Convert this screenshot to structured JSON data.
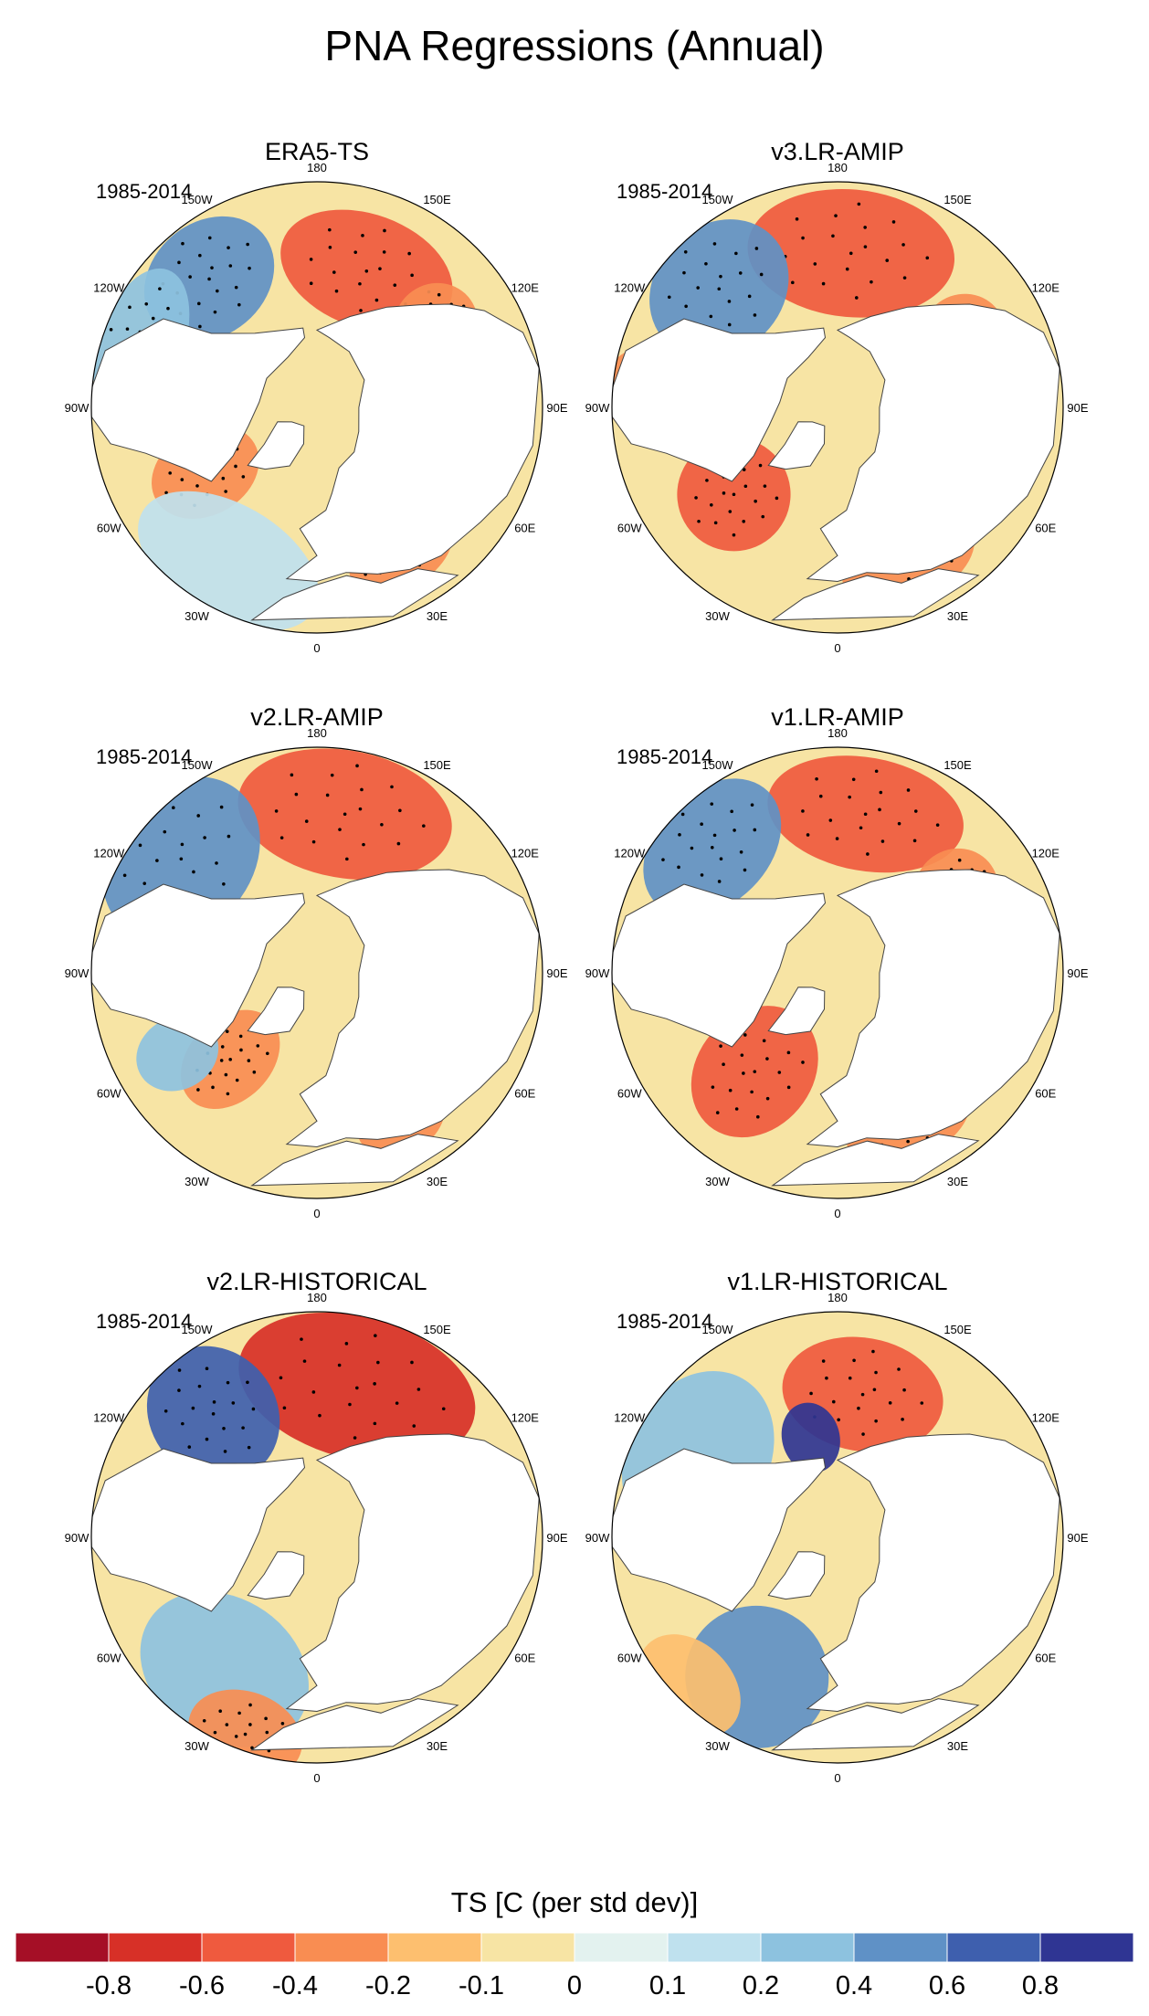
{
  "figure": {
    "title": "PNA Regressions (Annual)"
  },
  "chart_data": {
    "type": "polar-map",
    "title": "PNA Regressions (Annual)",
    "period_label": "1985-2014",
    "longitude_labels": [
      "180",
      "150E",
      "120E",
      "90E",
      "60E",
      "30E",
      "0",
      "30W",
      "60W",
      "90W",
      "120W",
      "150W"
    ],
    "longitude_values_deg": [
      180,
      150,
      120,
      90,
      60,
      30,
      0,
      -30,
      -60,
      -90,
      -120,
      -150
    ],
    "colorbar": {
      "title": "TS [C (per std dev)]",
      "tick_labels": [
        "-0.8",
        "-0.6",
        "-0.4",
        "-0.2",
        "-0.1",
        "0",
        "0.1",
        "0.2",
        "0.4",
        "0.6",
        "0.8"
      ],
      "tick_values": [
        -0.8,
        -0.6,
        -0.4,
        -0.2,
        -0.1,
        0,
        0.1,
        0.2,
        0.4,
        0.6,
        0.8
      ],
      "colors": [
        "#a50f26",
        "#d73027",
        "#ef5a3e",
        "#f98d52",
        "#fdbf6f",
        "#f7e4a4",
        "#e3f2ef",
        "#bfe1ee",
        "#8dc2df",
        "#5f91c6",
        "#3e5fae",
        "#2f3593"
      ]
    },
    "panels": [
      {
        "name": "ERA5-TS",
        "features": [
          {
            "lon": 160,
            "lat": 45,
            "value": -0.6,
            "spread_lon": 22,
            "spread_lat": 8,
            "stippled": true
          },
          {
            "lon": -140,
            "lat": 38,
            "value": 0.4,
            "spread_lon": 15,
            "spread_lat": 8,
            "stippled": true
          },
          {
            "lon": -110,
            "lat": 32,
            "value": 0.2,
            "spread_lon": 15,
            "spread_lat": 6,
            "stippled": true
          },
          {
            "lon": -60,
            "lat": 50,
            "value": -0.4,
            "spread_lon": 12,
            "spread_lat": 8,
            "stippled": true
          },
          {
            "lon": -30,
            "lat": 35,
            "value": 0.1,
            "spread_lon": 20,
            "spread_lat": 8,
            "stippled": false
          },
          {
            "lon": 30,
            "lat": 38,
            "value": -0.4,
            "spread_lon": 12,
            "spread_lat": 5,
            "stippled": true
          },
          {
            "lon": 125,
            "lat": 45,
            "value": -0.4,
            "spread_lon": 10,
            "spread_lat": 6,
            "stippled": true
          }
        ]
      },
      {
        "name": "v3.LR-AMIP",
        "features": [
          {
            "lon": 175,
            "lat": 42,
            "value": -0.6,
            "spread_lon": 24,
            "spread_lat": 9,
            "stippled": true
          },
          {
            "lon": -135,
            "lat": 38,
            "value": 0.4,
            "spread_lon": 16,
            "spread_lat": 9,
            "stippled": true
          },
          {
            "lon": -50,
            "lat": 48,
            "value": -0.6,
            "spread_lon": 15,
            "spread_lat": 8,
            "stippled": true
          },
          {
            "lon": -95,
            "lat": 30,
            "value": -0.4,
            "spread_lon": 8,
            "spread_lat": 6,
            "stippled": true
          },
          {
            "lon": 25,
            "lat": 38,
            "value": -0.4,
            "spread_lon": 15,
            "spread_lat": 6,
            "stippled": true
          },
          {
            "lon": 120,
            "lat": 45,
            "value": -0.4,
            "spread_lon": 10,
            "spread_lat": 6,
            "stippled": true
          }
        ]
      },
      {
        "name": "v2.LR-AMIP",
        "features": [
          {
            "lon": 170,
            "lat": 40,
            "value": -0.6,
            "spread_lon": 24,
            "spread_lat": 9,
            "stippled": true
          },
          {
            "lon": -130,
            "lat": 35,
            "value": 0.4,
            "spread_lon": 18,
            "spread_lat": 10,
            "stippled": true
          },
          {
            "lon": -45,
            "lat": 52,
            "value": -0.4,
            "spread_lon": 12,
            "spread_lat": 8,
            "stippled": true
          },
          {
            "lon": -60,
            "lat": 40,
            "value": 0.2,
            "spread_lon": 8,
            "spread_lat": 6,
            "stippled": false
          },
          {
            "lon": 30,
            "lat": 38,
            "value": -0.4,
            "spread_lon": 10,
            "spread_lat": 5,
            "stippled": false
          }
        ]
      },
      {
        "name": "v1.LR-AMIP",
        "features": [
          {
            "lon": 170,
            "lat": 40,
            "value": -0.6,
            "spread_lon": 22,
            "spread_lat": 8,
            "stippled": true
          },
          {
            "lon": -135,
            "lat": 35,
            "value": 0.4,
            "spread_lon": 16,
            "spread_lat": 8,
            "stippled": true
          },
          {
            "lon": -40,
            "lat": 50,
            "value": -0.6,
            "spread_lon": 16,
            "spread_lat": 10,
            "stippled": true
          },
          {
            "lon": 25,
            "lat": 38,
            "value": -0.4,
            "spread_lon": 14,
            "spread_lat": 5,
            "stippled": true
          },
          {
            "lon": 125,
            "lat": 45,
            "value": -0.4,
            "spread_lon": 10,
            "spread_lat": 6,
            "stippled": true
          }
        ]
      },
      {
        "name": "v2.LR-HISTORICAL",
        "features": [
          {
            "lon": 165,
            "lat": 42,
            "value": -0.8,
            "spread_lon": 28,
            "spread_lat": 10,
            "stippled": true
          },
          {
            "lon": -140,
            "lat": 40,
            "value": 0.6,
            "spread_lon": 14,
            "spread_lat": 10,
            "stippled": true
          },
          {
            "lon": -35,
            "lat": 40,
            "value": 0.2,
            "spread_lon": 20,
            "spread_lat": 10,
            "stippled": false
          },
          {
            "lon": -20,
            "lat": 25,
            "value": -0.4,
            "spread_lon": 10,
            "spread_lat": 6,
            "stippled": true
          }
        ]
      },
      {
        "name": "v1.LR-HISTORICAL",
        "features": [
          {
            "lon": 170,
            "lat": 45,
            "value": -0.6,
            "spread_lon": 20,
            "spread_lat": 8,
            "stippled": true
          },
          {
            "lon": -165,
            "lat": 58,
            "value": 0.8,
            "spread_lon": 10,
            "spread_lat": 5,
            "stippled": false
          },
          {
            "lon": -120,
            "lat": 40,
            "value": 0.2,
            "spread_lon": 20,
            "spread_lat": 10,
            "stippled": false
          },
          {
            "lon": -30,
            "lat": 40,
            "value": 0.4,
            "spread_lon": 16,
            "spread_lat": 10,
            "stippled": false
          },
          {
            "lon": -45,
            "lat": 25,
            "value": -0.2,
            "spread_lon": 10,
            "spread_lat": 6,
            "stippled": false
          }
        ]
      }
    ]
  }
}
